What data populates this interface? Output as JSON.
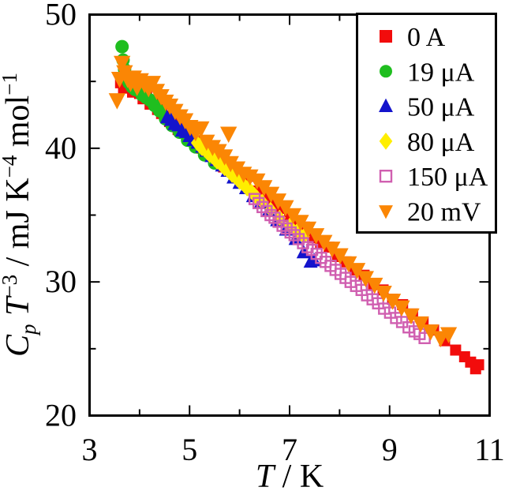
{
  "figure": {
    "background": "#ffffff",
    "frame_color": "#000000"
  },
  "chart_data": {
    "type": "scatter",
    "title": "",
    "xlabel_segments": [
      {
        "text": "T",
        "italic": true
      },
      {
        "text": " / K"
      }
    ],
    "ylabel_segments": [
      {
        "text": "C",
        "italic": true
      },
      {
        "text": "p",
        "italic": true,
        "baseline": "sub"
      },
      {
        "text": " "
      },
      {
        "text": "T",
        "italic": true
      },
      {
        "text": "−3",
        "baseline": "sup"
      },
      {
        "text": " / mJ K"
      },
      {
        "text": "−4",
        "baseline": "sup"
      },
      {
        "text": " mol"
      },
      {
        "text": "−1",
        "baseline": "sup"
      }
    ],
    "xlim": [
      3,
      11
    ],
    "ylim": [
      20,
      50
    ],
    "x_major_ticks": [
      3,
      5,
      7,
      9,
      11
    ],
    "x_tick_labels": [
      "3",
      "5",
      "7",
      "9",
      "11"
    ],
    "x_minor_ticks": [
      4,
      6,
      8,
      10
    ],
    "y_major_ticks": [
      20,
      30,
      40,
      50
    ],
    "y_tick_labels": [
      "20",
      "30",
      "40",
      "50"
    ],
    "y_minor_ticks": [
      25,
      35,
      45
    ],
    "grid": false,
    "legend_position": "top-right",
    "series": [
      {
        "name": "0 A",
        "marker": "square",
        "color": "#f20c0c",
        "size": 14,
        "points": [
          [
            3.62,
            44.9
          ],
          [
            3.68,
            44.5
          ],
          [
            3.74,
            45.0
          ],
          [
            3.8,
            44.6
          ],
          [
            3.86,
            44.2
          ],
          [
            3.93,
            44.7
          ],
          [
            4.0,
            44.1
          ],
          [
            4.07,
            43.7
          ],
          [
            4.14,
            44.0
          ],
          [
            4.21,
            43.3
          ],
          [
            4.28,
            43.6
          ],
          [
            4.36,
            42.9
          ],
          [
            4.44,
            42.6
          ],
          [
            4.52,
            42.4
          ],
          [
            4.6,
            42.0
          ],
          [
            4.68,
            41.9
          ],
          [
            4.77,
            41.4
          ],
          [
            4.86,
            41.6
          ],
          [
            4.95,
            40.9
          ],
          [
            5.05,
            40.7
          ],
          [
            5.15,
            40.5
          ],
          [
            5.25,
            40.0
          ],
          [
            5.35,
            39.9
          ],
          [
            5.46,
            39.4
          ],
          [
            5.57,
            39.2
          ],
          [
            5.68,
            38.6
          ],
          [
            5.8,
            38.3
          ],
          [
            5.92,
            38.1
          ],
          [
            6.04,
            37.6
          ],
          [
            6.17,
            37.9
          ],
          [
            6.3,
            36.8
          ],
          [
            6.43,
            36.6
          ],
          [
            6.57,
            36.2
          ],
          [
            6.71,
            35.7
          ],
          [
            6.85,
            35.5
          ],
          [
            7.0,
            34.9
          ],
          [
            7.15,
            34.4
          ],
          [
            7.3,
            34.1
          ],
          [
            7.46,
            33.3
          ],
          [
            7.62,
            32.9
          ],
          [
            7.79,
            32.6
          ],
          [
            7.96,
            31.9
          ],
          [
            8.13,
            31.5
          ],
          [
            8.31,
            30.9
          ],
          [
            8.49,
            30.5
          ],
          [
            8.68,
            29.8
          ],
          [
            8.87,
            29.4
          ],
          [
            9.06,
            28.7
          ],
          [
            9.26,
            28.3
          ],
          [
            9.46,
            27.6
          ],
          [
            9.67,
            27.0
          ],
          [
            9.88,
            26.4
          ],
          [
            10.1,
            25.6
          ],
          [
            10.32,
            24.9
          ],
          [
            10.5,
            24.4
          ],
          [
            10.62,
            24.0
          ],
          [
            10.72,
            23.5
          ],
          [
            10.78,
            23.8
          ]
        ]
      },
      {
        "name": "19 μA",
        "marker": "circle",
        "color": "#1fbe1f",
        "size": 17,
        "points": [
          [
            3.65,
            47.6
          ],
          [
            3.67,
            46.6
          ],
          [
            3.7,
            45.9
          ],
          [
            3.74,
            45.3
          ],
          [
            3.79,
            44.9
          ],
          [
            3.85,
            44.6
          ],
          [
            3.91,
            44.4
          ],
          [
            3.98,
            44.3
          ],
          [
            4.05,
            44.0
          ],
          [
            4.13,
            43.8
          ],
          [
            4.21,
            43.6
          ],
          [
            4.3,
            43.2
          ],
          [
            4.4,
            42.8
          ],
          [
            4.52,
            42.2
          ],
          [
            4.65,
            41.7
          ],
          [
            4.8,
            41.2
          ],
          [
            4.96,
            40.6
          ],
          [
            5.12,
            40.1
          ],
          [
            5.3,
            39.5
          ],
          [
            5.5,
            38.9
          ]
        ]
      },
      {
        "name": "50 μA",
        "marker": "triangle-up",
        "color": "#1414cc",
        "size": 16,
        "points": [
          [
            4.55,
            42.3
          ],
          [
            4.63,
            42.1
          ],
          [
            4.7,
            41.8
          ],
          [
            4.78,
            41.7
          ],
          [
            4.85,
            41.3
          ],
          [
            4.93,
            41.2
          ],
          [
            5.0,
            40.9
          ],
          [
            5.08,
            40.6
          ],
          [
            5.16,
            40.4
          ],
          [
            5.25,
            40.1
          ],
          [
            5.34,
            39.8
          ],
          [
            5.44,
            39.4
          ],
          [
            5.54,
            39.1
          ],
          [
            5.65,
            38.7
          ],
          [
            5.76,
            38.3
          ],
          [
            5.88,
            37.8
          ],
          [
            6.0,
            37.4
          ],
          [
            6.13,
            37.0
          ],
          [
            6.27,
            36.4
          ],
          [
            6.42,
            35.9
          ],
          [
            6.58,
            35.3
          ],
          [
            6.75,
            34.6
          ],
          [
            6.93,
            33.9
          ],
          [
            7.12,
            33.2
          ],
          [
            7.28,
            32.2
          ],
          [
            7.42,
            31.5
          ],
          [
            7.49,
            31.6
          ]
        ]
      },
      {
        "name": "80 μA",
        "marker": "diamond",
        "color": "#ffee00",
        "size": 15,
        "points": [
          [
            5.15,
            40.4
          ],
          [
            5.2,
            40.2
          ],
          [
            5.25,
            40.0
          ],
          [
            5.3,
            39.9
          ],
          [
            5.35,
            39.7
          ],
          [
            5.4,
            39.5
          ],
          [
            5.45,
            39.4
          ],
          [
            5.5,
            39.2
          ],
          [
            5.55,
            39.0
          ],
          [
            5.6,
            38.9
          ],
          [
            5.65,
            38.7
          ],
          [
            5.7,
            38.5
          ],
          [
            5.75,
            38.4
          ],
          [
            5.8,
            38.2
          ],
          [
            5.85,
            38.0
          ],
          [
            5.9,
            37.9
          ],
          [
            5.95,
            37.7
          ],
          [
            6.0,
            37.5
          ],
          [
            6.05,
            37.4
          ],
          [
            6.1,
            37.2
          ],
          [
            6.15,
            37.0
          ],
          [
            6.2,
            36.9
          ],
          [
            6.25,
            36.7
          ],
          [
            6.3,
            36.5
          ],
          [
            6.35,
            36.3
          ],
          [
            6.45,
            36.0
          ],
          [
            6.62,
            35.4
          ],
          [
            6.8,
            34.8
          ],
          [
            7.0,
            34.2
          ],
          [
            7.15,
            33.8
          ],
          [
            7.28,
            33.4
          ]
        ]
      },
      {
        "name": "150 μA",
        "marker": "square-open",
        "color": "#d05fb0",
        "size": 13,
        "points": [
          [
            6.3,
            36.2
          ],
          [
            6.38,
            35.9
          ],
          [
            6.46,
            35.6
          ],
          [
            6.54,
            35.3
          ],
          [
            6.62,
            35.0
          ],
          [
            6.7,
            34.8
          ],
          [
            6.78,
            34.5
          ],
          [
            6.86,
            34.2
          ],
          [
            6.94,
            34.0
          ],
          [
            7.02,
            33.7
          ],
          [
            7.1,
            33.5
          ],
          [
            7.18,
            33.2
          ],
          [
            7.27,
            32.9
          ],
          [
            7.36,
            32.6
          ],
          [
            7.45,
            32.4
          ],
          [
            7.54,
            32.1
          ],
          [
            7.63,
            31.8
          ],
          [
            7.72,
            31.5
          ],
          [
            7.82,
            31.2
          ],
          [
            7.92,
            30.9
          ],
          [
            8.02,
            30.6
          ],
          [
            8.12,
            30.3
          ],
          [
            8.22,
            30.0
          ],
          [
            8.33,
            29.7
          ],
          [
            8.44,
            29.4
          ],
          [
            8.55,
            29.0
          ],
          [
            8.66,
            28.7
          ],
          [
            8.77,
            28.4
          ],
          [
            8.89,
            28.0
          ],
          [
            9.01,
            27.7
          ],
          [
            9.13,
            27.3
          ],
          [
            9.25,
            27.0
          ],
          [
            9.38,
            26.6
          ],
          [
            9.5,
            26.3
          ],
          [
            9.6,
            26.1
          ],
          [
            9.7,
            25.8
          ]
        ]
      },
      {
        "name": "20 mV",
        "marker": "triangle-down",
        "color": "#fb8604",
        "size": 19,
        "points": [
          [
            3.55,
            43.6
          ],
          [
            3.6,
            45.2
          ],
          [
            3.65,
            46.4
          ],
          [
            3.7,
            45.7
          ],
          [
            3.76,
            45.2
          ],
          [
            3.82,
            44.9
          ],
          [
            3.88,
            45.3
          ],
          [
            3.95,
            44.6
          ],
          [
            4.02,
            45.1
          ],
          [
            4.1,
            44.8
          ],
          [
            4.18,
            44.5
          ],
          [
            4.26,
            44.9
          ],
          [
            4.34,
            44.3
          ],
          [
            4.43,
            43.9
          ],
          [
            4.52,
            43.5
          ],
          [
            4.61,
            43.2
          ],
          [
            4.71,
            42.8
          ],
          [
            4.81,
            42.4
          ],
          [
            4.91,
            42.1
          ],
          [
            5.01,
            41.6
          ],
          [
            5.12,
            41.2
          ],
          [
            5.23,
            41.5
          ],
          [
            5.34,
            40.5
          ],
          [
            5.46,
            40.1
          ],
          [
            5.58,
            39.8
          ],
          [
            5.7,
            39.4
          ],
          [
            5.78,
            41.1
          ],
          [
            5.82,
            38.9
          ],
          [
            5.95,
            38.5
          ],
          [
            6.08,
            38.1
          ],
          [
            6.21,
            37.9
          ],
          [
            6.35,
            37.6
          ],
          [
            6.49,
            37.1
          ],
          [
            6.63,
            36.6
          ],
          [
            6.77,
            36.1
          ],
          [
            6.92,
            35.6
          ],
          [
            7.07,
            35.0
          ],
          [
            7.22,
            34.5
          ],
          [
            7.37,
            34.0
          ],
          [
            7.53,
            33.5
          ],
          [
            7.69,
            33.0
          ],
          [
            7.85,
            32.5
          ],
          [
            8.01,
            32.0
          ],
          [
            8.18,
            31.4
          ],
          [
            8.35,
            30.9
          ],
          [
            8.52,
            30.3
          ],
          [
            8.7,
            29.8
          ],
          [
            8.88,
            29.2
          ],
          [
            9.06,
            28.6
          ],
          [
            9.24,
            28.1
          ],
          [
            9.43,
            27.5
          ],
          [
            9.62,
            26.9
          ],
          [
            9.82,
            26.3
          ],
          [
            10.02,
            25.8
          ],
          [
            10.18,
            26.1
          ]
        ]
      }
    ]
  }
}
